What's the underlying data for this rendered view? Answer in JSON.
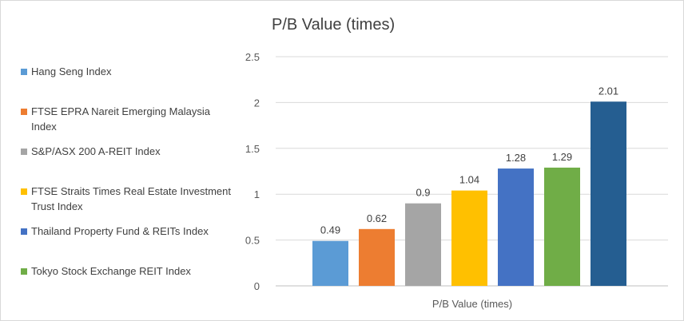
{
  "chart_data": {
    "type": "bar",
    "title": "P/B Value (times)",
    "xlabel": "P/B Value (times)",
    "ylabel": "",
    "ylim": [
      0,
      2.5
    ],
    "yticks": [
      "0",
      "0.5",
      "1",
      "1.5",
      "2",
      "2.5"
    ],
    "grid": true,
    "legend_position": "left",
    "categories": [
      "P/B Value (times)"
    ],
    "series": [
      {
        "name": "Hang Seng Index",
        "value": 0.49,
        "label": "0.49",
        "color": "#5b9bd5"
      },
      {
        "name": "FTSE EPRA Nareit Emerging Malaysia Index",
        "value": 0.62,
        "label": "0.62",
        "color": "#ed7d31"
      },
      {
        "name": "S&P/ASX 200 A-REIT Index",
        "value": 0.9,
        "label": "0.9",
        "color": "#a5a5a5"
      },
      {
        "name": "FTSE Straits Times Real Estate Investment Trust Index",
        "value": 1.04,
        "label": "1.04",
        "color": "#ffc000"
      },
      {
        "name": "Thailand Property Fund & REITs Index",
        "value": 1.28,
        "label": "1.28",
        "color": "#4472c4"
      },
      {
        "name": "Tokyo Stock Exchange REIT Index",
        "value": 1.29,
        "label": "1.29",
        "color": "#70ad47"
      },
      {
        "name": "",
        "value": 2.01,
        "label": "2.01",
        "color": "#255e91"
      }
    ]
  }
}
